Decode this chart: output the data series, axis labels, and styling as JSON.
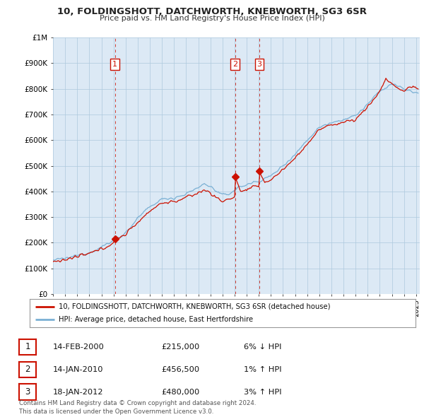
{
  "title": "10, FOLDINGSHOTT, DATCHWORTH, KNEBWORTH, SG3 6SR",
  "subtitle": "Price paid vs. HM Land Registry's House Price Index (HPI)",
  "ylabel_ticks": [
    "£0",
    "£100K",
    "£200K",
    "£300K",
    "£400K",
    "£500K",
    "£600K",
    "£700K",
    "£800K",
    "£900K",
    "£1M"
  ],
  "ytick_values": [
    0,
    100000,
    200000,
    300000,
    400000,
    500000,
    600000,
    700000,
    800000,
    900000,
    1000000
  ],
  "xlim_start": 1995.0,
  "xlim_end": 2025.3,
  "ylim_min": 0,
  "ylim_max": 1000000,
  "sale_dates": [
    2000.12,
    2010.04,
    2012.05
  ],
  "sale_prices": [
    215000,
    456500,
    480000
  ],
  "sale_labels": [
    "1",
    "2",
    "3"
  ],
  "legend_line1": "10, FOLDINGSHOTT, DATCHWORTH, KNEBWORTH, SG3 6SR (detached house)",
  "legend_line2": "HPI: Average price, detached house, East Hertfordshire",
  "table_data": [
    [
      "1",
      "14-FEB-2000",
      "£215,000",
      "6% ↓ HPI"
    ],
    [
      "2",
      "14-JAN-2010",
      "£456,500",
      "1% ↑ HPI"
    ],
    [
      "3",
      "18-JAN-2012",
      "£480,000",
      "3% ↑ HPI"
    ]
  ],
  "footer": "Contains HM Land Registry data © Crown copyright and database right 2024.\nThis data is licensed under the Open Government Licence v3.0.",
  "hpi_color": "#7ab0d4",
  "sold_color": "#cc1100",
  "chart_bg": "#dce9f5",
  "background_color": "#ffffff",
  "grid_color": "#aec8de"
}
